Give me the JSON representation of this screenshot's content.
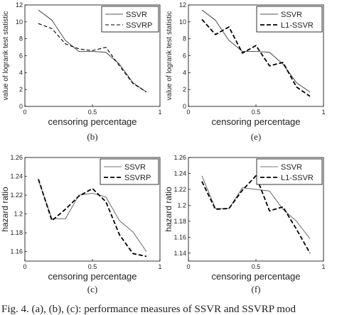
{
  "figure_caption": "Fig. 4.   (a), (b), (c): performance measures of SSVR and SSVRP mod",
  "chart_data": [
    {
      "type": "line",
      "panel_label": "(b)",
      "xlabel": "censoring percentage",
      "ylabel": "value of logrank test statistic",
      "xlim": [
        0,
        1
      ],
      "ylim": [
        0,
        12
      ],
      "xticks": [
        0,
        0.5,
        1
      ],
      "xtick_labels": [
        "0",
        "0.5",
        "1"
      ],
      "yticks": [
        0,
        2,
        4,
        6,
        8,
        10,
        12
      ],
      "ytick_labels": [
        "0",
        "2",
        "4",
        "6",
        "8",
        "10",
        "12"
      ],
      "legend_position": "top-right",
      "series": [
        {
          "name": "SSVR",
          "style": "solid",
          "color": "#555555",
          "x": [
            0.1,
            0.2,
            0.3,
            0.4,
            0.5,
            0.6,
            0.7,
            0.8,
            0.9
          ],
          "y": [
            11.4,
            10.2,
            7.8,
            6.5,
            6.5,
            6.4,
            5.0,
            2.8,
            1.7
          ]
        },
        {
          "name": "SSVRP",
          "style": "dashed",
          "color": "#000000",
          "x": [
            0.1,
            0.2,
            0.3,
            0.4,
            0.5,
            0.6,
            0.7,
            0.8,
            0.9
          ],
          "y": [
            9.8,
            9.2,
            7.4,
            6.8,
            6.6,
            7.0,
            4.8,
            2.7,
            1.7
          ]
        }
      ]
    },
    {
      "type": "line",
      "panel_label": "(e)",
      "xlabel": "censoring percentage",
      "ylabel": "value of logrank test statistic",
      "xlim": [
        0,
        1
      ],
      "ylim": [
        0,
        12
      ],
      "xticks": [
        0,
        0.5,
        1
      ],
      "xtick_labels": [
        "0",
        "0.5",
        "1"
      ],
      "yticks": [
        0,
        2,
        4,
        6,
        8,
        10,
        12
      ],
      "ytick_labels": [
        "0",
        "2",
        "4",
        "6",
        "8",
        "10",
        "12"
      ],
      "legend_position": "top-right",
      "series": [
        {
          "name": "SSVR",
          "style": "solid",
          "color": "#555555",
          "x": [
            0.1,
            0.2,
            0.3,
            0.4,
            0.5,
            0.6,
            0.7,
            0.8,
            0.9
          ],
          "y": [
            11.4,
            10.2,
            7.8,
            6.5,
            6.5,
            6.4,
            5.0,
            2.8,
            1.7
          ]
        },
        {
          "name": "L1-SSVR",
          "style": "dashed-bold",
          "color": "#000000",
          "x": [
            0.1,
            0.2,
            0.3,
            0.4,
            0.5,
            0.6,
            0.7,
            0.8,
            0.9
          ],
          "y": [
            10.3,
            8.5,
            9.4,
            6.3,
            7.2,
            4.8,
            5.2,
            2.3,
            1.2
          ]
        }
      ]
    },
    {
      "type": "line",
      "panel_label": "(c)",
      "xlabel": "censoring percentage",
      "ylabel": "hazard ratio",
      "xlim": [
        0,
        1
      ],
      "ylim": [
        1.15,
        1.26
      ],
      "xticks": [
        0,
        0.5,
        1
      ],
      "xtick_labels": [
        "0",
        "0.5",
        "1"
      ],
      "yticks": [
        1.16,
        1.18,
        1.2,
        1.22,
        1.24,
        1.26
      ],
      "ytick_labels": [
        "1.16",
        "1.18",
        "1.2",
        "1.22",
        "1.24",
        "1.26"
      ],
      "legend_position": "top-right",
      "series": [
        {
          "name": "SSVR",
          "style": "solid",
          "color": "#777777",
          "x": [
            0.1,
            0.2,
            0.3,
            0.4,
            0.5,
            0.6,
            0.7,
            0.8,
            0.9
          ],
          "y": [
            1.236,
            1.195,
            1.195,
            1.22,
            1.222,
            1.218,
            1.193,
            1.181,
            1.16
          ]
        },
        {
          "name": "SSVRP",
          "style": "dashed-bold",
          "color": "#000000",
          "x": [
            0.1,
            0.2,
            0.3,
            0.4,
            0.5,
            0.6,
            0.7,
            0.8,
            0.9
          ],
          "y": [
            1.237,
            1.193,
            1.205,
            1.219,
            1.227,
            1.213,
            1.178,
            1.158,
            1.155
          ]
        }
      ]
    },
    {
      "type": "line",
      "panel_label": "(f)",
      "xlabel": "censoring percentage",
      "ylabel": "hazard ratio",
      "xlim": [
        0,
        1
      ],
      "ylim": [
        1.13,
        1.26
      ],
      "xticks": [
        0,
        0.5,
        1
      ],
      "xtick_labels": [
        "0",
        "0.5",
        "1"
      ],
      "yticks": [
        1.14,
        1.16,
        1.18,
        1.2,
        1.22,
        1.24,
        1.26
      ],
      "ytick_labels": [
        "1.14",
        "1.16",
        "1.18",
        "1.2",
        "1.22",
        "1.24",
        "1.26"
      ],
      "legend_position": "top-right",
      "series": [
        {
          "name": "SSVR",
          "style": "solid",
          "color": "#777777",
          "x": [
            0.1,
            0.2,
            0.3,
            0.4,
            0.5,
            0.6,
            0.7,
            0.8,
            0.9
          ],
          "y": [
            1.237,
            1.196,
            1.196,
            1.222,
            1.22,
            1.218,
            1.195,
            1.18,
            1.158
          ]
        },
        {
          "name": "L1-SSVR",
          "style": "dashed-bold",
          "color": "#000000",
          "x": [
            0.1,
            0.2,
            0.3,
            0.4,
            0.5,
            0.6,
            0.7,
            0.8,
            0.9
          ],
          "y": [
            1.23,
            1.195,
            1.196,
            1.219,
            1.237,
            1.193,
            1.198,
            1.17,
            1.14
          ]
        }
      ]
    }
  ]
}
